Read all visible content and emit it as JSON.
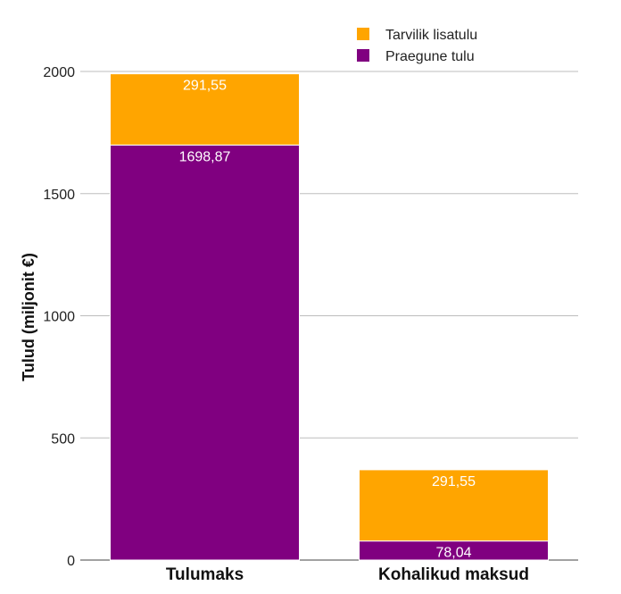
{
  "chart_data": {
    "type": "bar",
    "stacked": true,
    "categories": [
      "Tulumaks",
      "Kohalikud maksud"
    ],
    "series": [
      {
        "name": "Praegune tulu",
        "values": [
          1698.87,
          78.04
        ],
        "labels": [
          "1698,87",
          "78,04"
        ],
        "color": "#800080"
      },
      {
        "name": "Tarvilik lisatulu",
        "values": [
          291.55,
          291.55
        ],
        "labels": [
          "291,55",
          "291,55"
        ],
        "color": "#ffa500"
      }
    ],
    "title": "",
    "xlabel": "",
    "ylabel": "Tulud (miljonit €)",
    "ylim": [
      0,
      2000
    ],
    "yticks": [
      0,
      500,
      1000,
      1500,
      2000
    ],
    "ytick_labels": [
      "0",
      "500",
      "1000",
      "1500",
      "2000"
    ],
    "grid": true,
    "legend_position": "top-right"
  }
}
